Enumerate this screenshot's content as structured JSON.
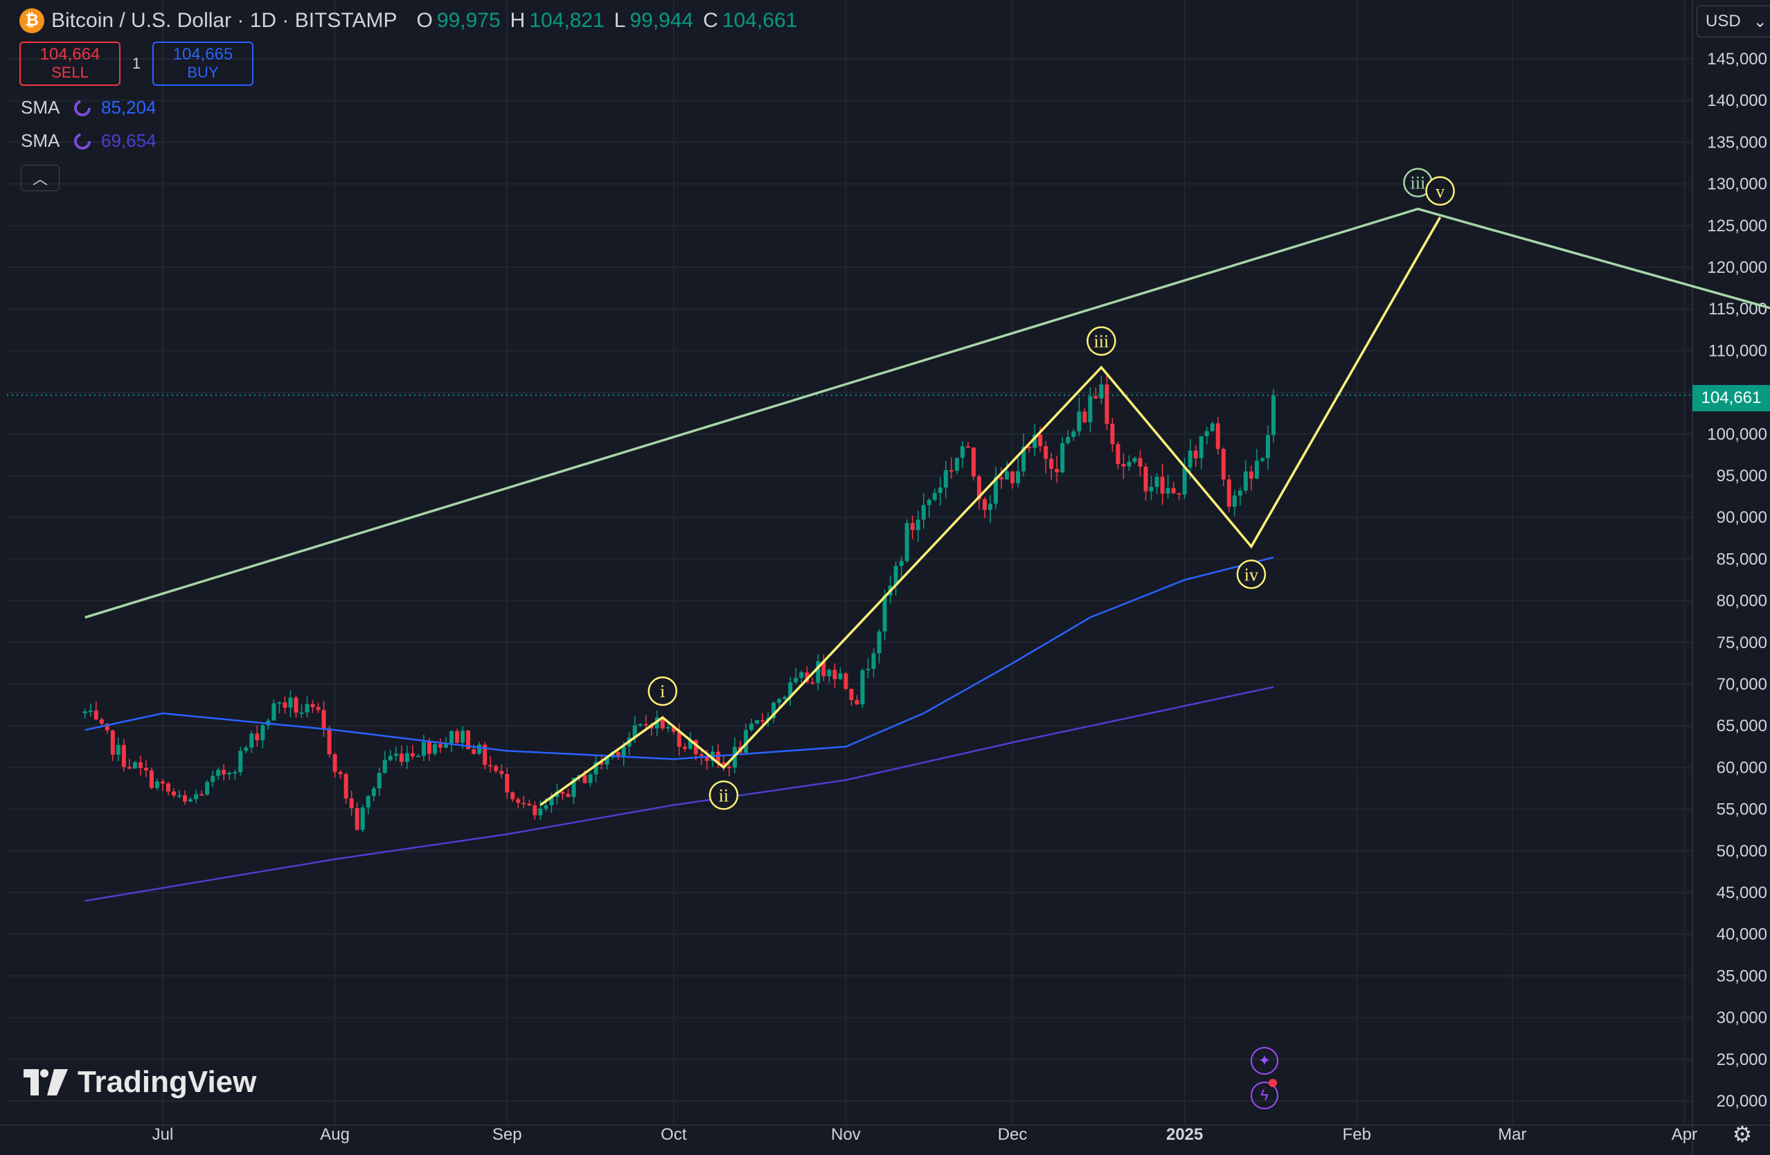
{
  "header": {
    "title": "Bitcoin / U.S. Dollar · 1D · BITSTAMP",
    "open_label": "O",
    "open": "99,975",
    "high_label": "H",
    "high": "104,821",
    "low_label": "L",
    "low": "99,944",
    "close_label": "C",
    "close": "104,661"
  },
  "trade": {
    "sell_price": "104,664",
    "sell_label": "SELL",
    "quantity": "1",
    "buy_price": "104,665",
    "buy_label": "BUY"
  },
  "indicators": [
    {
      "name": "SMA",
      "value": "85,204",
      "color": "#2962ff"
    },
    {
      "name": "SMA",
      "value": "69,654",
      "color": "#4b3fd1"
    }
  ],
  "currency": "USD",
  "last_price_label": "104,661",
  "brand": "TradingView",
  "icons": {
    "symbol": "bitcoin-icon",
    "collapse": "chevron-up-icon",
    "currency_dropdown": "chevron-down-icon",
    "assistant": "sparkle-icon",
    "alerts": "lightning-icon",
    "settings": "gear-icon"
  },
  "colors": {
    "background": "#161a25",
    "up": "#089981",
    "down": "#f23645",
    "wave_minor": "#fff176",
    "wave_major": "#a5d6a7"
  },
  "chart_data": {
    "type": "candlestick",
    "title": "Bitcoin / U.S. Dollar · 1D · BITSTAMP",
    "x_ticks": [
      "Jul",
      "Aug",
      "Sep",
      "Oct",
      "Nov",
      "Dec",
      "2025",
      "Feb",
      "Mar",
      "Apr"
    ],
    "y_ticks": [
      "145,000",
      "140,000",
      "135,000",
      "130,000",
      "125,000",
      "120,000",
      "115,000",
      "110,000",
      "105,000",
      "100,000",
      "95,000",
      "90,000",
      "85,000",
      "80,000",
      "75,000",
      "70,000",
      "65,000",
      "60,000",
      "55,000",
      "50,000",
      "45,000",
      "40,000",
      "35,000",
      "30,000",
      "25,000",
      "20,000"
    ],
    "ylim": [
      20000,
      145000
    ],
    "grid": true,
    "last_price": 104661,
    "price_path": [
      [
        "2024-06-17",
        66500
      ],
      [
        "2024-06-24",
        61000
      ],
      [
        "2024-07-05",
        55500
      ],
      [
        "2024-07-14",
        60500
      ],
      [
        "2024-07-22",
        68000
      ],
      [
        "2024-07-29",
        66000
      ],
      [
        "2024-08-05",
        53000
      ],
      [
        "2024-08-10",
        61000
      ],
      [
        "2024-08-24",
        64000
      ],
      [
        "2024-09-06",
        54000
      ],
      [
        "2024-09-16",
        59500
      ],
      [
        "2024-09-27",
        65800
      ],
      [
        "2024-10-10",
        60000
      ],
      [
        "2024-10-20",
        68500
      ],
      [
        "2024-10-29",
        72500
      ],
      [
        "2024-11-03",
        68500
      ],
      [
        "2024-11-12",
        88000
      ],
      [
        "2024-11-22",
        98500
      ],
      [
        "2024-11-26",
        92000
      ],
      [
        "2024-12-05",
        98500
      ],
      [
        "2024-12-09",
        97000
      ],
      [
        "2024-12-17",
        106000
      ],
      [
        "2024-12-20",
        97000
      ],
      [
        "2024-12-30",
        92500
      ],
      [
        "2025-01-06",
        102000
      ],
      [
        "2025-01-09",
        92500
      ],
      [
        "2025-01-13",
        94500
      ],
      [
        "2025-01-16",
        100000
      ],
      [
        "2025-01-17",
        104661
      ]
    ],
    "series": [
      {
        "name": "SMA",
        "value": 85204,
        "color": "#2962ff",
        "points": [
          [
            "2024-06-17",
            64500
          ],
          [
            "2024-07-01",
            66500
          ],
          [
            "2024-08-01",
            64500
          ],
          [
            "2024-09-01",
            62000
          ],
          [
            "2024-10-01",
            61000
          ],
          [
            "2024-11-01",
            62500
          ],
          [
            "2024-11-15",
            66500
          ],
          [
            "2024-12-01",
            72500
          ],
          [
            "2024-12-15",
            78000
          ],
          [
            "2025-01-01",
            82500
          ],
          [
            "2025-01-17",
            85204
          ]
        ]
      },
      {
        "name": "SMA",
        "value": 69654,
        "color": "#4b3fd1",
        "points": [
          [
            "2024-06-17",
            44000
          ],
          [
            "2024-08-01",
            49000
          ],
          [
            "2024-09-01",
            52000
          ],
          [
            "2024-10-01",
            55500
          ],
          [
            "2024-11-01",
            58500
          ],
          [
            "2024-12-01",
            63000
          ],
          [
            "2025-01-17",
            69654
          ]
        ]
      }
    ],
    "wave_minor": {
      "color": "#fff176",
      "points": [
        [
          "2024-09-07",
          55500
        ],
        [
          "2024-09-29",
          66000
        ],
        [
          "2024-10-10",
          60000
        ],
        [
          "2024-12-17",
          108000
        ],
        [
          "2025-01-13",
          86500
        ],
        [
          "2025-02-16",
          126000
        ]
      ],
      "labels": [
        {
          "text": "i",
          "date": "2024-09-29",
          "price": 66000,
          "pos": "above"
        },
        {
          "text": "ii",
          "date": "2024-10-10",
          "price": 60000,
          "pos": "below"
        },
        {
          "text": "iii",
          "date": "2024-12-17",
          "price": 108000,
          "pos": "above"
        },
        {
          "text": "iv",
          "date": "2025-01-13",
          "price": 86500,
          "pos": "below"
        },
        {
          "text": "v",
          "date": "2025-02-16",
          "price": 126000,
          "pos": "above"
        }
      ]
    },
    "wave_major": {
      "color": "#a5d6a7",
      "points": [
        [
          "2024-06-17",
          78000
        ],
        [
          "2025-02-12",
          127000
        ],
        [
          "2025-04-17",
          115000
        ]
      ],
      "labels": [
        {
          "text": "iii",
          "date": "2025-02-12",
          "price": 127000,
          "pos": "above"
        }
      ]
    }
  }
}
